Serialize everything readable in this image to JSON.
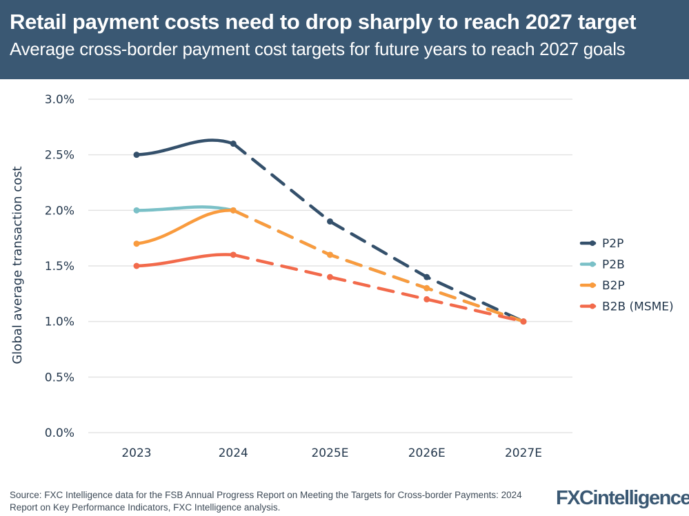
{
  "header": {
    "title": "Retail payment costs need to drop sharply to reach 2027 target",
    "subtitle": "Average cross-border payment cost targets for future years to reach 2027 goals"
  },
  "footer": {
    "source": "Source: FXC Intelligence data for the FSB Annual Progress Report on Meeting the Targets for Cross-border Payments: 2024 Report on Key Performance Indicators, FXC Intelligence analysis.",
    "logo": "FXCintelligence"
  },
  "chart_data": {
    "type": "line",
    "title": "Retail payment costs need to drop sharply to reach 2027 target",
    "subtitle": "Average cross-border payment cost targets for future years to reach 2027 goals",
    "xlabel": "",
    "ylabel": "Global average transaction cost",
    "categories": [
      "2023",
      "2024",
      "2025E",
      "2026E",
      "2027E"
    ],
    "ylim": [
      0,
      3.0
    ],
    "yticks": [
      0,
      0.5,
      1.0,
      1.5,
      2.0,
      2.5,
      3.0
    ],
    "ytick_labels": [
      "0.0%",
      "0.5%",
      "1.0%",
      "1.5%",
      "2.0%",
      "2.5%",
      "3.0%"
    ],
    "grid": true,
    "legend_position": "right",
    "solid_until_index": 1,
    "series": [
      {
        "name": "P2P",
        "color": "#34506b",
        "values": [
          2.5,
          2.6,
          1.9,
          1.4,
          1.0
        ]
      },
      {
        "name": "P2B",
        "color": "#7ac0c7",
        "values": [
          2.0,
          2.0,
          1.6,
          1.3,
          1.0
        ]
      },
      {
        "name": "B2P",
        "color": "#f99b3e",
        "values": [
          1.7,
          2.0,
          1.6,
          1.3,
          1.0
        ]
      },
      {
        "name": "B2B (MSME)",
        "color": "#f26a4b",
        "values": [
          1.5,
          1.6,
          1.4,
          1.2,
          1.0
        ]
      }
    ]
  }
}
